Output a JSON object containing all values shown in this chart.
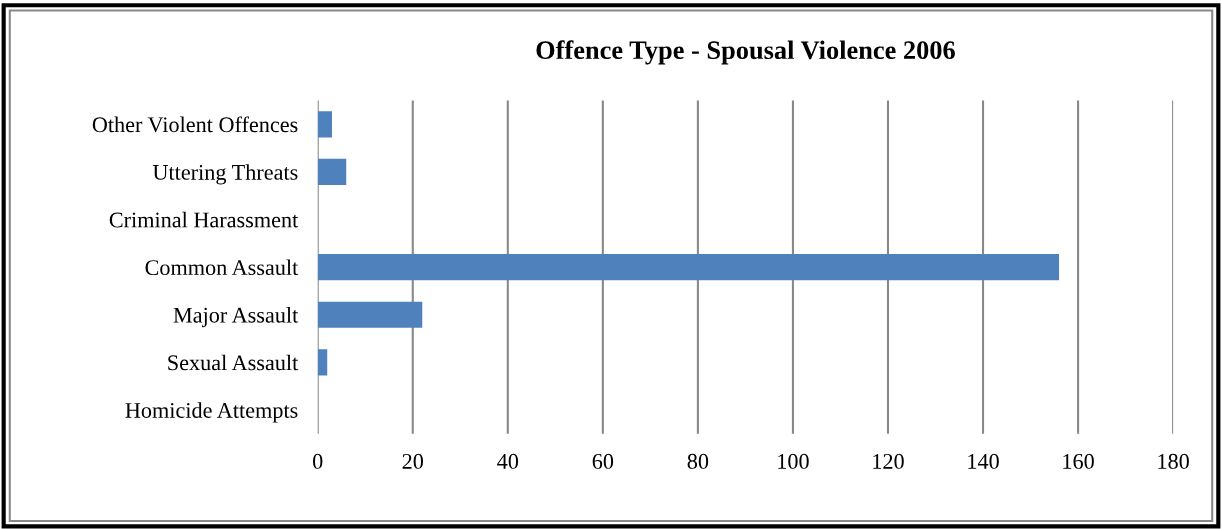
{
  "chart_data": {
    "type": "bar",
    "orientation": "horizontal",
    "title": "Offence Type - Spousal Violence 2006",
    "categories": [
      "Other Violent Offences",
      "Uttering Threats",
      "Criminal Harassment",
      "Common Assault",
      "Major Assault",
      "Sexual Assault",
      "Homicide Attempts"
    ],
    "values": [
      3,
      6,
      0,
      156,
      22,
      2,
      0
    ],
    "color": "#4f81bd",
    "xlim": [
      0,
      180
    ],
    "xticks": [
      0,
      20,
      40,
      60,
      80,
      100,
      120,
      140,
      160,
      180
    ],
    "grid": "x"
  }
}
